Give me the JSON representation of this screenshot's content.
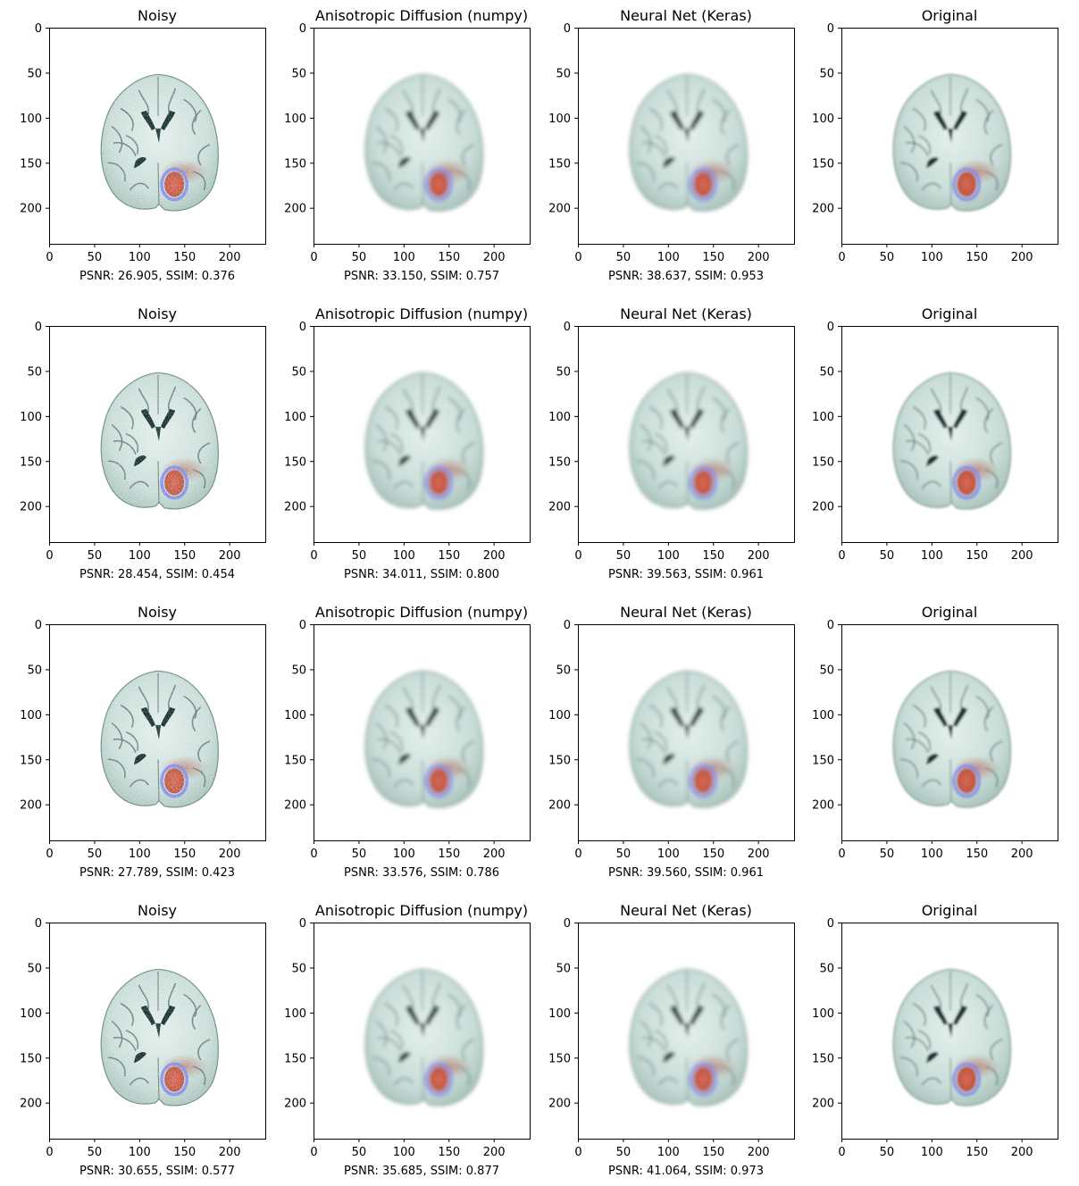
{
  "columns": [
    "Noisy",
    "Anisotropic Diffusion (numpy)",
    "Neural Net (Keras)",
    "Original"
  ],
  "x_ticks": [
    "0",
    "50",
    "100",
    "150",
    "200"
  ],
  "y_ticks": [
    "0",
    "50",
    "100",
    "150",
    "200"
  ],
  "axis_range": [
    0,
    240
  ],
  "rows": [
    {
      "image_style": [
        "noisy",
        "smooth",
        "smooth",
        "original"
      ],
      "captions": [
        "PSNR: 26.905, SSIM: 0.376",
        "PSNR: 33.150, SSIM: 0.757",
        "PSNR: 38.637, SSIM: 0.953",
        ""
      ],
      "noise_level": "high"
    },
    {
      "image_style": [
        "noisy",
        "smooth",
        "smooth",
        "original"
      ],
      "captions": [
        "PSNR: 28.454, SSIM: 0.454",
        "PSNR: 34.011, SSIM: 0.800",
        "PSNR: 39.563, SSIM: 0.961",
        ""
      ],
      "noise_level": "medium"
    },
    {
      "image_style": [
        "noisy",
        "smooth",
        "smooth",
        "original"
      ],
      "captions": [
        "PSNR: 27.789, SSIM: 0.423",
        "PSNR: 33.576, SSIM: 0.786",
        "PSNR: 39.560, SSIM: 0.961",
        ""
      ],
      "noise_level": "medium"
    },
    {
      "image_style": [
        "noisy",
        "smooth",
        "smooth",
        "original"
      ],
      "captions": [
        "PSNR: 30.655, SSIM: 0.577",
        "PSNR: 35.685, SSIM: 0.877",
        "PSNR: 41.064, SSIM: 0.973",
        ""
      ],
      "noise_level": "low"
    }
  ],
  "colors": {
    "brain": "#cfe3de",
    "brain_dark": "#1f3a3a",
    "tumor": "#d0604a",
    "tumor_ring": "#7f86e8",
    "edema": "#b8897e"
  }
}
